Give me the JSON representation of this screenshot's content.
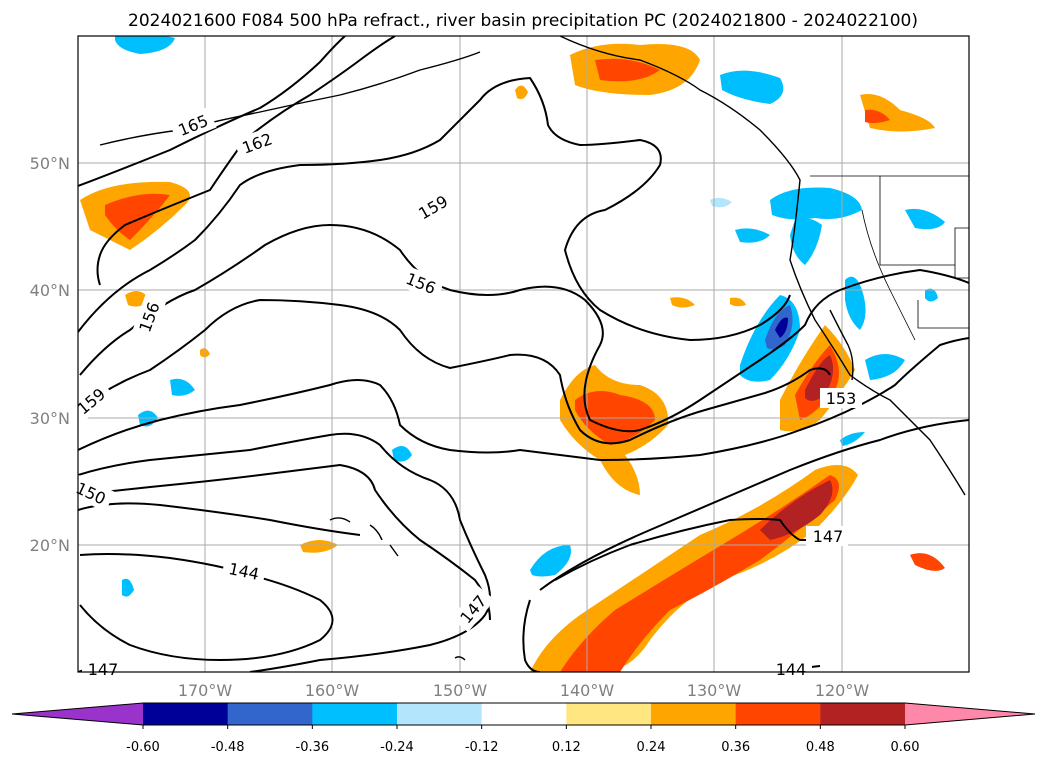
{
  "chart_data": {
    "type": "contour-map",
    "title": "2024021600 F084 500 hPa refract., river basin precipitation PC (2024021800 - 2024022100)",
    "x_ticks": [
      "170°W",
      "160°W",
      "150°W",
      "140°W",
      "130°W",
      "120°W"
    ],
    "y_ticks": [
      "50°N",
      "40°N",
      "30°N",
      "20°N"
    ],
    "lon_range": [
      -180,
      -110
    ],
    "lat_range": [
      10,
      60
    ],
    "grid": true,
    "colorbar": {
      "orientation": "horizontal",
      "extend": "both",
      "levels": [
        "-0.60",
        "-0.48",
        "-0.36",
        "-0.24",
        "-0.12",
        "0.12",
        "0.24",
        "0.36",
        "0.48",
        "0.60"
      ],
      "colors": [
        "#9933cc",
        "#000099",
        "#3366cc",
        "#00bfff",
        "#b3e5fc",
        "#ffffff",
        "#ffe680",
        "#ffa500",
        "#ff4500",
        "#b22222",
        "#ff88aa"
      ]
    },
    "contour_labels": [
      "165",
      "162",
      "159",
      "156",
      "156",
      "159",
      "150",
      "153",
      "147",
      "147",
      "144",
      "144",
      "147"
    ]
  }
}
